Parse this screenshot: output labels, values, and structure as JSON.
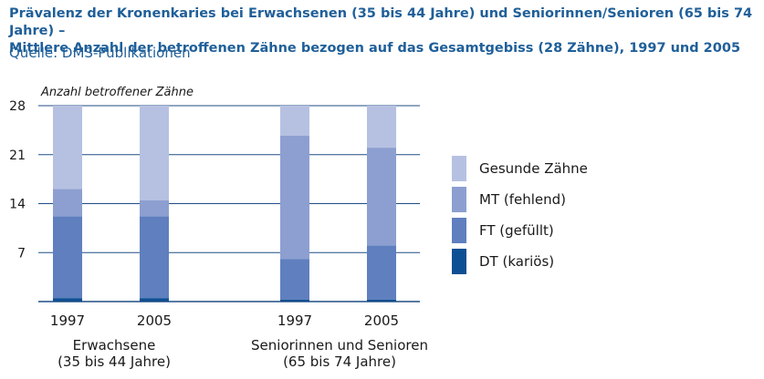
{
  "title_line1": "Prävalenz der Kronenkaries bei Erwachsenen (35 bis 44 Jahre) und Seniorinnen/Senioren (65 bis 74 Jahre) –",
  "title_line2": "Mittlere Anzahl der betroffenen Zähne bezogen auf das Gesamtgebiss (28 Zähne), 1997 und 2005",
  "source": "Quelle: DMS-Publikationen",
  "chart_data": {
    "type": "bar",
    "stacked": true,
    "ylabel": "Anzahl betroffener Zähne",
    "ylim": [
      0,
      28
    ],
    "yticks": [
      7,
      14,
      21,
      28
    ],
    "grid": true,
    "legend_position": "right",
    "categories": [
      "1997",
      "2005",
      "1997",
      "2005"
    ],
    "groups": [
      {
        "label_line1": "Erwachsene",
        "label_line2": "(35 bis 44 Jahre)",
        "categories": [
          0,
          1
        ]
      },
      {
        "label_line1": "Seniorinnen und Senioren",
        "label_line2": "(65 bis 74 Jahre)",
        "categories": [
          2,
          3
        ]
      }
    ],
    "series": [
      {
        "name": "DT (kariös)",
        "color": "#0d4f93",
        "values": [
          0.5,
          0.5,
          0.3,
          0.3
        ]
      },
      {
        "name": "FT (gefüllt)",
        "color": "#5f7fbf",
        "values": [
          11.7,
          11.7,
          5.8,
          7.7
        ]
      },
      {
        "name": "MT (fehlend)",
        "color": "#8c9fd0",
        "values": [
          3.9,
          2.3,
          17.6,
          14.0
        ]
      },
      {
        "name": "Gesunde Zähne",
        "color": "#b6c1e2",
        "values": [
          11.9,
          13.5,
          4.3,
          6.0
        ]
      }
    ]
  }
}
